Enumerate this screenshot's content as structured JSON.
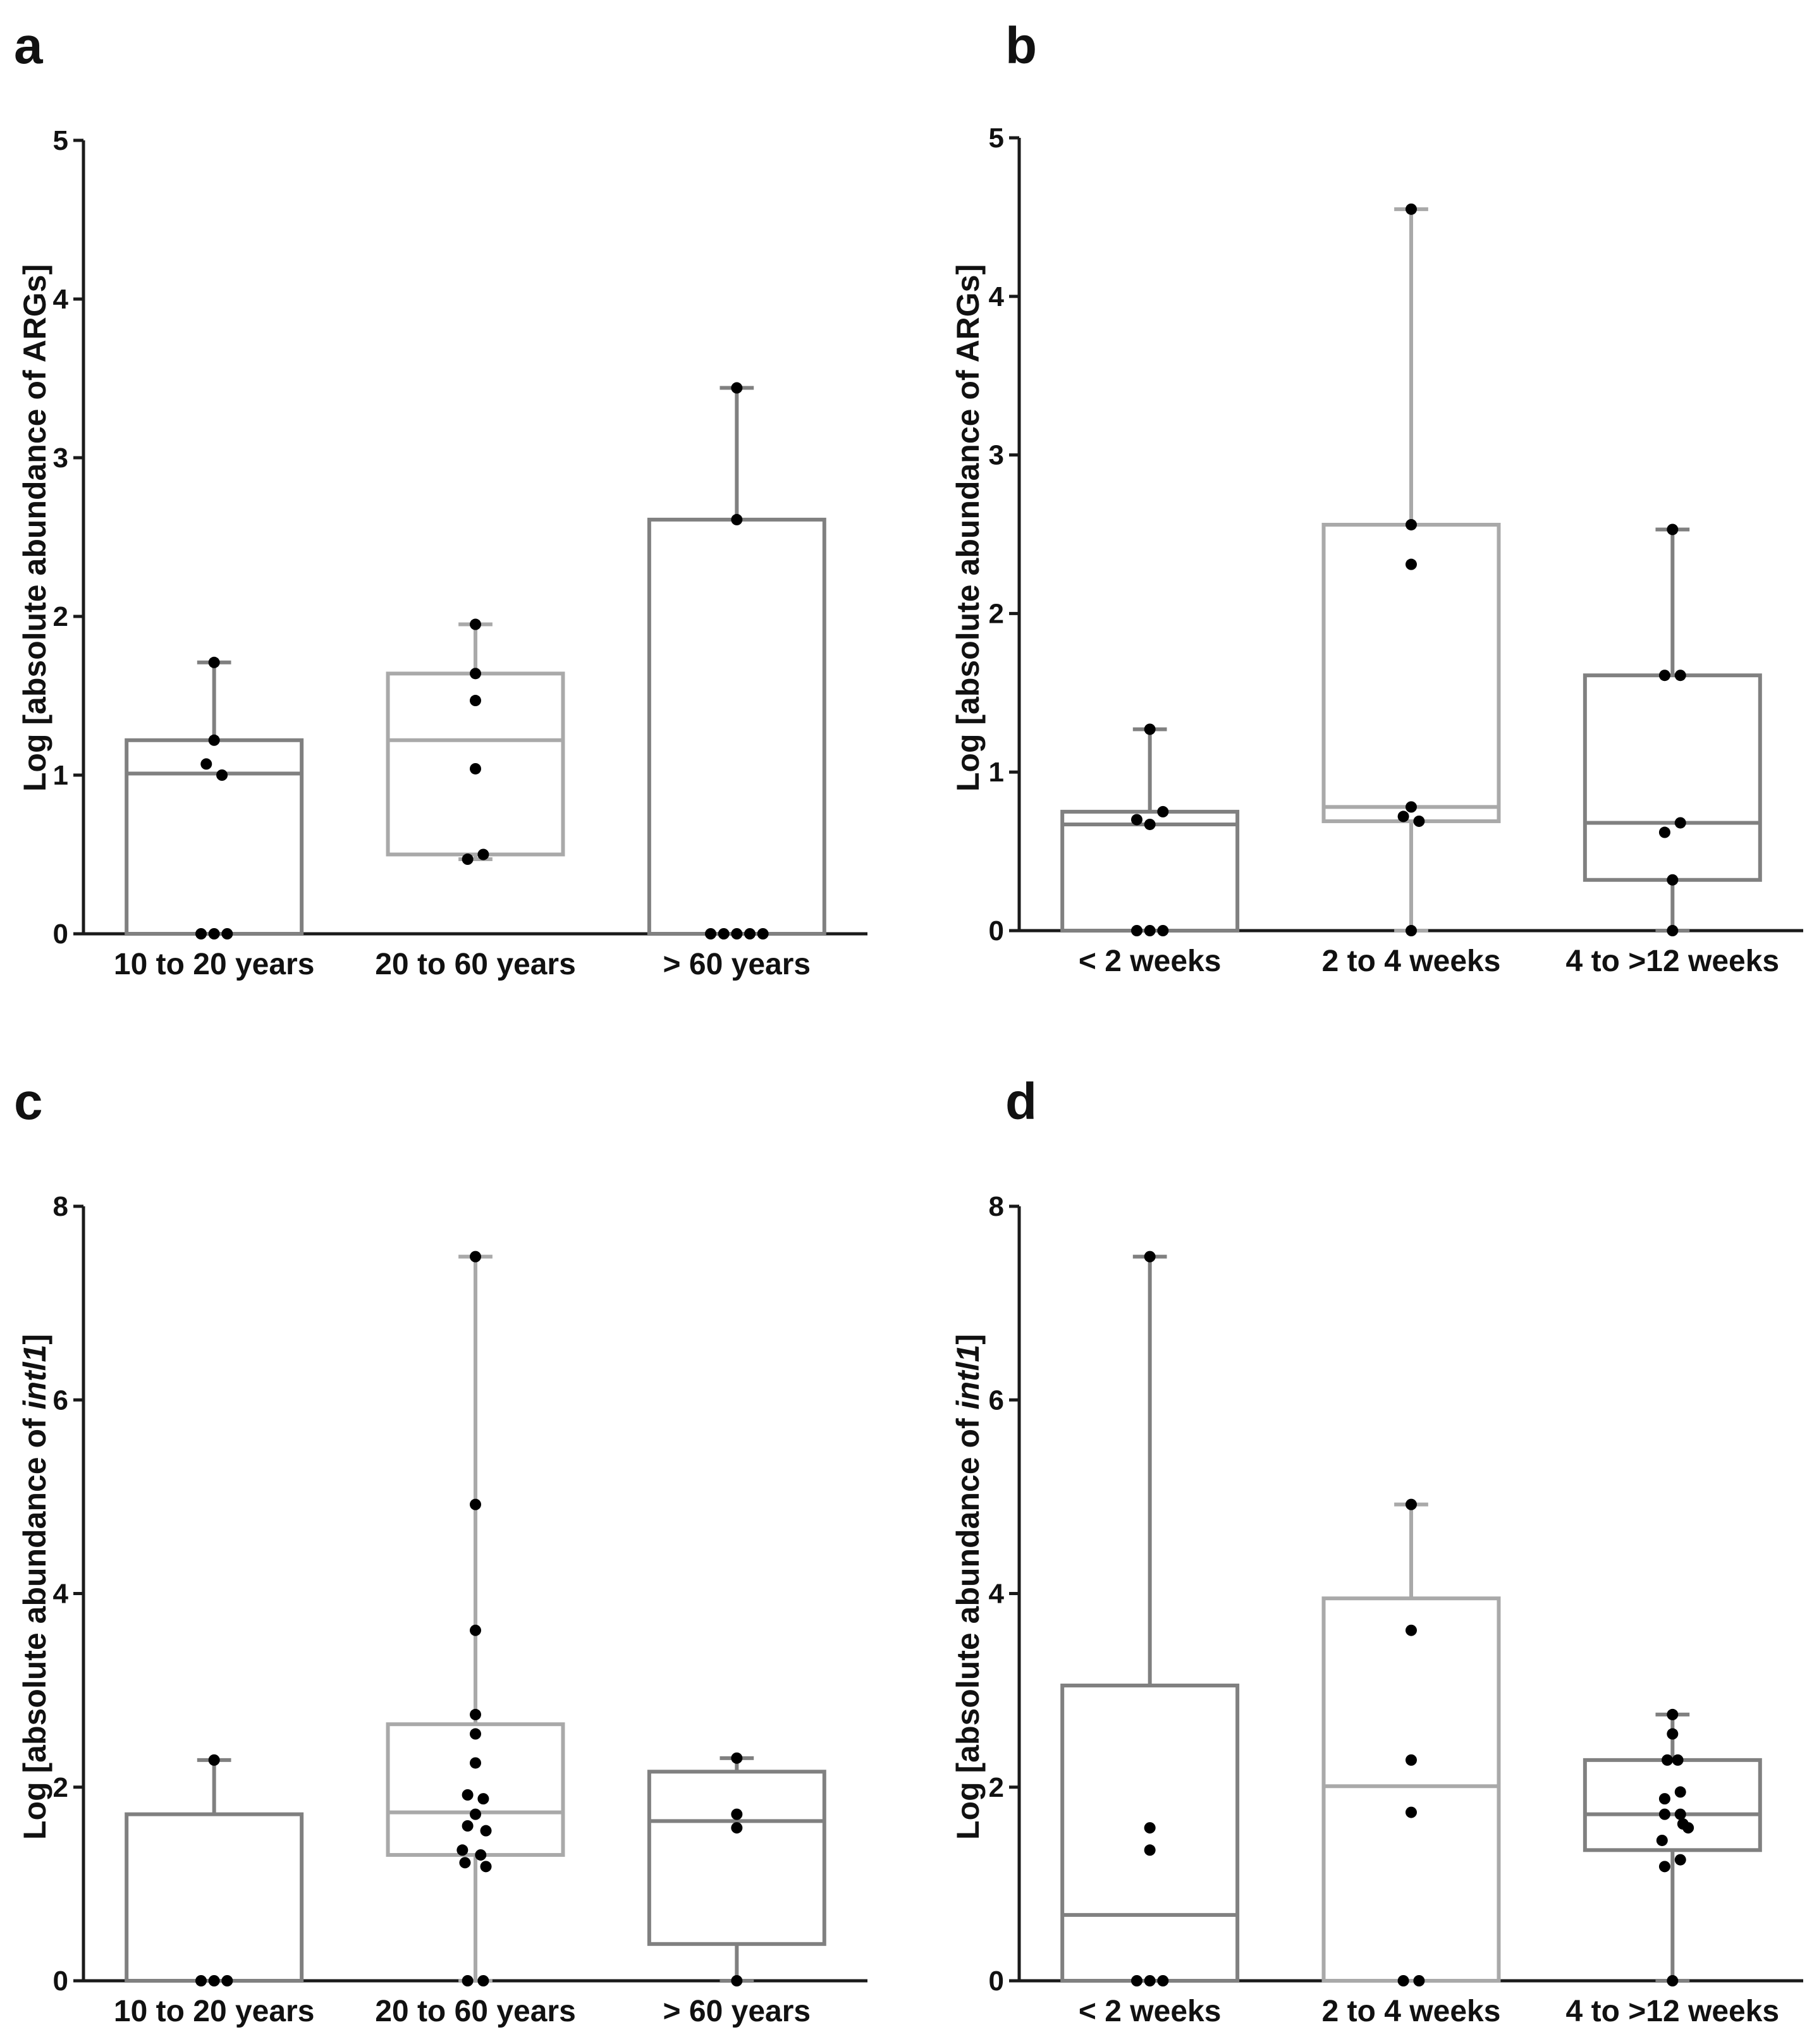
{
  "chart_data": [
    {
      "panel": "a",
      "type": "box",
      "ylabel": "Log [absolute abundance of  ARGs]",
      "ylim": [
        0,
        5
      ],
      "yticks": [
        0,
        1,
        2,
        3,
        4,
        5
      ],
      "categories": [
        "10 to 20 years",
        "20 to 60 years",
        "> 60 years"
      ],
      "boxes": [
        {
          "category": "10 to 20 years",
          "color": "#808080",
          "min": 0,
          "q1": 0,
          "median": 1.01,
          "q3": 1.22,
          "max": 1.71,
          "points": [
            [
              -0.05,
              0
            ],
            [
              0,
              0
            ],
            [
              0.05,
              0
            ],
            [
              -0.03,
              1.07
            ],
            [
              0,
              1.22
            ],
            [
              0.03,
              1.0
            ],
            [
              0,
              1.71
            ]
          ]
        },
        {
          "category": "20 to 60 years",
          "color": "#a9a9a9",
          "min": 0.47,
          "q1": 0.5,
          "median": 1.22,
          "q3": 1.64,
          "max": 1.95,
          "points": [
            [
              -0.03,
              0.47
            ],
            [
              0.03,
              0.5
            ],
            [
              0,
              1.04
            ],
            [
              0,
              1.47
            ],
            [
              0,
              1.64
            ],
            [
              0,
              1.95
            ]
          ]
        },
        {
          "category": "> 60 years",
          "color": "#808080",
          "min": 0,
          "q1": 0,
          "median": 0,
          "q3": 2.61,
          "max": 3.44,
          "points": [
            [
              -0.1,
              0
            ],
            [
              -0.05,
              0
            ],
            [
              0,
              0
            ],
            [
              0.05,
              0
            ],
            [
              0.1,
              0
            ],
            [
              0,
              2.61
            ],
            [
              0,
              3.44
            ]
          ]
        }
      ]
    },
    {
      "panel": "b",
      "type": "box",
      "ylabel": "Log [absolute abundance of  ARGs]",
      "ylim": [
        0,
        5
      ],
      "yticks": [
        0,
        1,
        2,
        3,
        4,
        5
      ],
      "categories": [
        "< 2 weeks",
        "2 to 4 weeks",
        "4 to >12 weeks"
      ],
      "boxes": [
        {
          "category": "< 2 weeks",
          "color": "#808080",
          "min": 0,
          "q1": 0,
          "median": 0.67,
          "q3": 0.75,
          "max": 1.27,
          "points": [
            [
              -0.05,
              0
            ],
            [
              0,
              0
            ],
            [
              0.05,
              0
            ],
            [
              -0.05,
              0.7
            ],
            [
              0,
              0.67
            ],
            [
              0.05,
              0.75
            ],
            [
              0,
              1.27
            ]
          ]
        },
        {
          "category": "2 to 4 weeks",
          "color": "#a9a9a9",
          "min": 0,
          "q1": 0.69,
          "median": 0.78,
          "q3": 2.56,
          "max": 4.55,
          "points": [
            [
              0,
              0
            ],
            [
              -0.03,
              0.72
            ],
            [
              0.03,
              0.69
            ],
            [
              0,
              0.78
            ],
            [
              0,
              2.31
            ],
            [
              0,
              2.56
            ],
            [
              0,
              4.55
            ]
          ]
        },
        {
          "category": "4 to >12 weeks",
          "color": "#808080",
          "min": 0,
          "q1": 0.32,
          "median": 0.68,
          "q3": 1.61,
          "max": 2.53,
          "points": [
            [
              0,
              0
            ],
            [
              0,
              0.32
            ],
            [
              -0.03,
              0.62
            ],
            [
              0.03,
              0.68
            ],
            [
              -0.03,
              1.61
            ],
            [
              0.03,
              1.61
            ],
            [
              0,
              2.53
            ]
          ]
        }
      ]
    },
    {
      "panel": "c",
      "type": "box",
      "ylabel_prefix": "Log [absolute abundance of  ",
      "ylabel_gene": "intl1",
      "ylabel_suffix": "]",
      "ylim": [
        0,
        8
      ],
      "yticks": [
        0,
        2,
        4,
        6,
        8
      ],
      "categories": [
        "10 to 20 years",
        "20 to 60 years",
        "> 60 years"
      ],
      "boxes": [
        {
          "category": "10 to 20 years",
          "color": "#808080",
          "min": 0,
          "q1": 0,
          "median": 0,
          "q3": 1.72,
          "max": 2.28,
          "points": [
            [
              -0.05,
              0
            ],
            [
              0,
              0
            ],
            [
              0.05,
              0
            ],
            [
              0,
              2.28
            ]
          ]
        },
        {
          "category": "20 to 60 years",
          "color": "#a9a9a9",
          "min": 0,
          "q1": 1.3,
          "median": 1.74,
          "q3": 2.65,
          "max": 7.48,
          "points": [
            [
              -0.03,
              0
            ],
            [
              0.03,
              0
            ],
            [
              -0.04,
              1.22
            ],
            [
              0.04,
              1.18
            ],
            [
              -0.05,
              1.35
            ],
            [
              0.02,
              1.3
            ],
            [
              -0.03,
              1.6
            ],
            [
              0.04,
              1.55
            ],
            [
              0,
              1.72
            ],
            [
              -0.03,
              1.92
            ],
            [
              0.03,
              1.88
            ],
            [
              0,
              2.25
            ],
            [
              0,
              2.55
            ],
            [
              0,
              2.75
            ],
            [
              0,
              3.62
            ],
            [
              0,
              4.92
            ],
            [
              0,
              7.48
            ]
          ]
        },
        {
          "category": "> 60 years",
          "color": "#808080",
          "min": 0,
          "q1": 0.38,
          "median": 1.65,
          "q3": 2.16,
          "max": 2.3,
          "points": [
            [
              0,
              0
            ],
            [
              0,
              1.58
            ],
            [
              0,
              1.72
            ],
            [
              0,
              2.3
            ]
          ]
        }
      ]
    },
    {
      "panel": "d",
      "type": "box",
      "ylabel_prefix": "Log [absolute abundance of ",
      "ylabel_gene": "intl1",
      "ylabel_suffix": "]",
      "ylim": [
        0,
        8
      ],
      "yticks": [
        0,
        2,
        4,
        6,
        8
      ],
      "categories": [
        "< 2 weeks",
        "2 to 4 weeks",
        "4 to >12 weeks"
      ],
      "boxes": [
        {
          "category": "< 2 weeks",
          "color": "#808080",
          "min": 0,
          "q1": 0,
          "median": 0.68,
          "q3": 3.05,
          "max": 7.48,
          "points": [
            [
              -0.05,
              0
            ],
            [
              0,
              0
            ],
            [
              0.05,
              0
            ],
            [
              0,
              1.35
            ],
            [
              0,
              1.58
            ],
            [
              0,
              7.48
            ]
          ]
        },
        {
          "category": "2 to 4 weeks",
          "color": "#a9a9a9",
          "min": 0,
          "q1": 0,
          "median": 2.01,
          "q3": 3.95,
          "max": 4.92,
          "points": [
            [
              -0.03,
              0
            ],
            [
              0.03,
              0
            ],
            [
              0,
              1.74
            ],
            [
              0,
              2.28
            ],
            [
              0,
              3.62
            ],
            [
              0,
              4.92
            ]
          ]
        },
        {
          "category": "4 to >12 weeks",
          "color": "#808080",
          "min": 0,
          "q1": 1.35,
          "median": 1.72,
          "q3": 2.28,
          "max": 2.75,
          "points": [
            [
              0,
              0
            ],
            [
              -0.03,
              1.18
            ],
            [
              0.03,
              1.25
            ],
            [
              -0.04,
              1.45
            ],
            [
              0.04,
              1.62
            ],
            [
              0.06,
              1.58
            ],
            [
              -0.03,
              1.72
            ],
            [
              0.03,
              1.72
            ],
            [
              -0.03,
              1.88
            ],
            [
              0.03,
              1.95
            ],
            [
              -0.02,
              2.28
            ],
            [
              0.02,
              2.28
            ],
            [
              0,
              2.55
            ],
            [
              0,
              2.75
            ]
          ]
        }
      ]
    }
  ]
}
